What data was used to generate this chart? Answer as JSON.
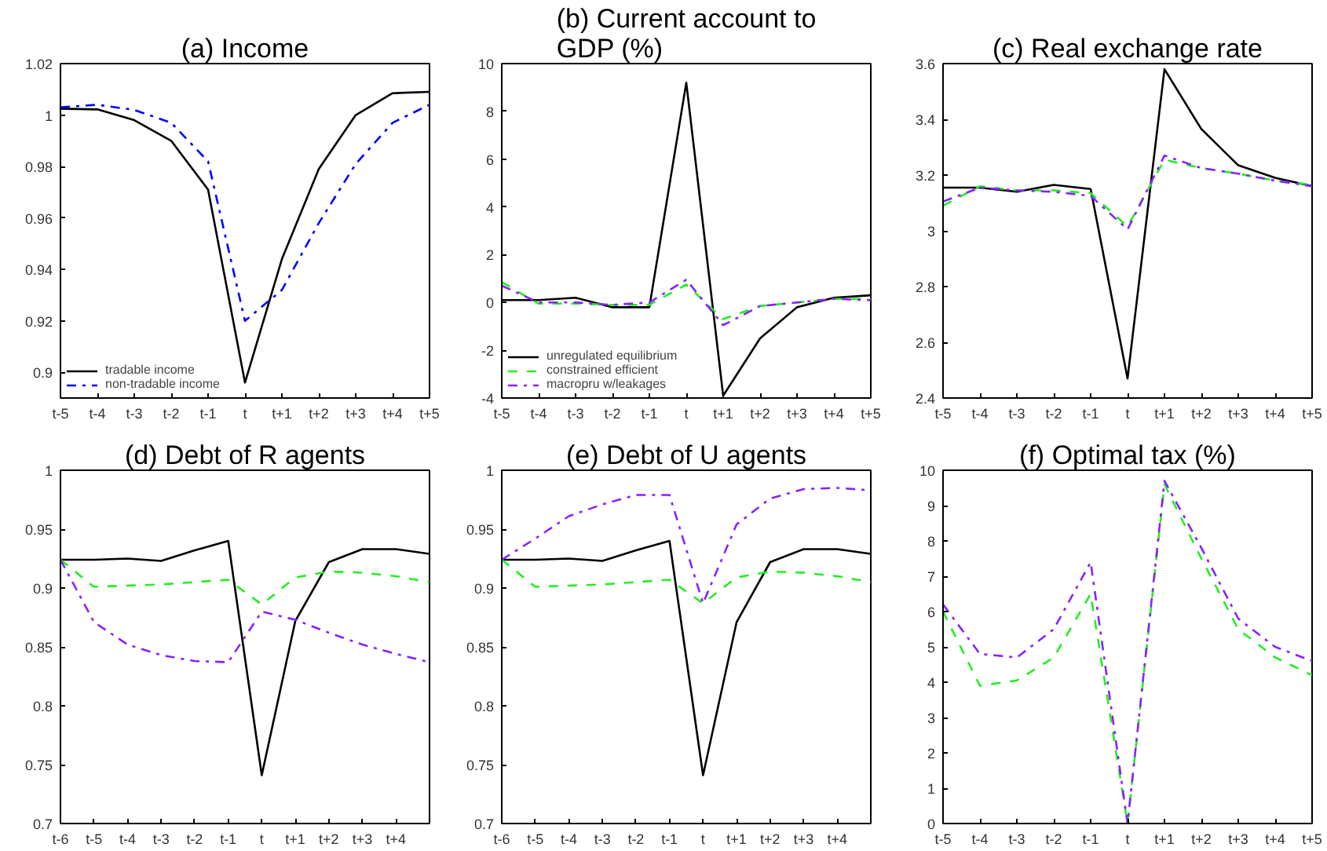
{
  "chart_data": [
    {
      "type": "line",
      "title": "(a) Income",
      "categories": [
        "t-5",
        "t-4",
        "t-3",
        "t-2",
        "t-1",
        "t",
        "t+1",
        "t+2",
        "t+3",
        "t+4",
        "t+5"
      ],
      "ylim": [
        0.89,
        1.02
      ],
      "yticks": [
        0.9,
        0.92,
        0.94,
        0.96,
        0.98,
        1,
        1.02
      ],
      "grid": false,
      "legend": "bottom left",
      "series": [
        {
          "name": "tradable income",
          "color": "#000000",
          "line_style": "solid",
          "values": [
            1.0025,
            1.0022,
            0.998,
            0.99,
            0.971,
            0.896,
            0.944,
            0.979,
            1.0,
            1.0085,
            1.009
          ]
        },
        {
          "name": "non-tradable income",
          "color": "#0000ff",
          "line_style": "dashdot",
          "values": [
            1.003,
            1.004,
            1.002,
            0.997,
            0.982,
            0.92,
            0.932,
            0.958,
            0.981,
            0.997,
            1.004
          ]
        }
      ]
    },
    {
      "type": "line",
      "title": "(b) Current account to GDP (%)",
      "categories": [
        "t-5",
        "t-4",
        "t-3",
        "t-2",
        "t-1",
        "t",
        "t+1",
        "t+2",
        "t+3",
        "t+4",
        "t+5"
      ],
      "ylim": [
        -4,
        10
      ],
      "yticks": [
        -4,
        -2,
        0,
        2,
        4,
        6,
        8,
        10
      ],
      "grid": false,
      "legend": "bottom left",
      "series": [
        {
          "name": "unregulated equilibrium",
          "color": "#000000",
          "line_style": "solid",
          "values": [
            0.1,
            0.1,
            0.2,
            -0.2,
            -0.2,
            9.2,
            -3.9,
            -1.5,
            -0.2,
            0.2,
            0.3
          ]
        },
        {
          "name": "constrained efficient",
          "color": "#22ee22",
          "line_style": "dashed",
          "values": [
            0.85,
            -0.05,
            -0.05,
            -0.1,
            -0.1,
            0.75,
            -0.7,
            -0.15,
            0.0,
            0.15,
            0.15
          ]
        },
        {
          "name": "macropru w/leakages",
          "color": "#8822ff",
          "line_style": "dashdot",
          "values": [
            0.7,
            0.0,
            0.0,
            -0.1,
            0.0,
            0.95,
            -0.95,
            -0.15,
            0.0,
            0.15,
            0.1
          ]
        }
      ]
    },
    {
      "type": "line",
      "title": "(c) Real exchange rate",
      "categories": [
        "t-5",
        "t-4",
        "t-3",
        "t-2",
        "t-1",
        "t",
        "t+1",
        "t+2",
        "t+3",
        "t+4",
        "t+5"
      ],
      "ylim": [
        2.4,
        3.6
      ],
      "yticks": [
        2.4,
        2.6,
        2.8,
        3,
        3.2,
        3.4,
        3.6
      ],
      "grid": false,
      "series": [
        {
          "color": "#000000",
          "line_style": "solid",
          "values": [
            3.155,
            3.155,
            3.14,
            3.165,
            3.15,
            2.47,
            3.58,
            3.365,
            3.235,
            3.19,
            3.16
          ]
        },
        {
          "color": "#22ee22",
          "line_style": "dashed",
          "values": [
            3.09,
            3.16,
            3.145,
            3.145,
            3.135,
            3.015,
            3.255,
            3.225,
            3.205,
            3.18,
            3.165
          ]
        },
        {
          "color": "#8822ff",
          "line_style": "dashdot",
          "values": [
            3.105,
            3.155,
            3.145,
            3.14,
            3.125,
            3.005,
            3.27,
            3.225,
            3.205,
            3.18,
            3.16
          ]
        }
      ]
    },
    {
      "type": "line",
      "title": "(d) Debt of R agents",
      "categories": [
        "t-6",
        "t-5",
        "t-4",
        "t-3",
        "t-2",
        "t-1",
        "t",
        "t+1",
        "t+2",
        "t+3",
        "t+4",
        null
      ],
      "ylim": [
        0.7,
        1
      ],
      "yticks": [
        0.7,
        0.75,
        0.8,
        0.85,
        0.9,
        0.95,
        1
      ],
      "grid": false,
      "series": [
        {
          "color": "#000000",
          "line_style": "solid",
          "values": [
            0.924,
            0.924,
            0.925,
            0.923,
            0.932,
            0.94,
            0.741,
            0.872,
            0.922,
            0.933,
            0.933,
            0.929
          ]
        },
        {
          "color": "#22ee22",
          "line_style": "dashed",
          "values": [
            0.924,
            0.901,
            0.902,
            0.903,
            0.905,
            0.907,
            0.886,
            0.909,
            0.914,
            0.913,
            0.91,
            0.905
          ]
        },
        {
          "color": "#8822ff",
          "line_style": "dashdot",
          "values": [
            0.924,
            0.871,
            0.852,
            0.843,
            0.838,
            0.837,
            0.88,
            0.873,
            0.862,
            0.852,
            0.844,
            0.837
          ]
        }
      ]
    },
    {
      "type": "line",
      "title": "(e) Debt of U agents",
      "categories": [
        "t-6",
        "t-5",
        "t-4",
        "t-3",
        "t-2",
        "t-1",
        "t",
        "t+1",
        "t+2",
        "t+3",
        "t+4",
        null
      ],
      "ylim": [
        0.7,
        1
      ],
      "yticks": [
        0.7,
        0.75,
        0.8,
        0.85,
        0.9,
        0.95,
        1
      ],
      "grid": false,
      "series": [
        {
          "color": "#000000",
          "line_style": "solid",
          "values": [
            0.924,
            0.924,
            0.925,
            0.923,
            0.932,
            0.94,
            0.741,
            0.871,
            0.922,
            0.933,
            0.933,
            0.929
          ]
        },
        {
          "color": "#22ee22",
          "line_style": "dashed",
          "values": [
            0.924,
            0.901,
            0.902,
            0.903,
            0.905,
            0.907,
            0.887,
            0.909,
            0.914,
            0.913,
            0.91,
            0.905
          ]
        },
        {
          "color": "#8822ff",
          "line_style": "dashdot",
          "values": [
            0.924,
            0.942,
            0.961,
            0.971,
            0.979,
            0.979,
            0.887,
            0.954,
            0.976,
            0.984,
            0.985,
            0.983
          ]
        }
      ]
    },
    {
      "type": "line",
      "title": "(f) Optimal tax (%)",
      "categories": [
        "t-5",
        "t-4",
        "t-3",
        "t-2",
        "t-1",
        "t",
        "t+1",
        "t+2",
        "t+3",
        "t+4",
        "t+5"
      ],
      "ylim": [
        0,
        10
      ],
      "yticks": [
        0,
        1,
        2,
        3,
        4,
        5,
        6,
        7,
        8,
        9,
        10
      ],
      "grid": false,
      "series": [
        {
          "color": "#22ee22",
          "line_style": "dashed",
          "values": [
            6.0,
            3.9,
            4.05,
            4.7,
            6.5,
            0.0,
            9.6,
            7.5,
            5.5,
            4.7,
            4.2
          ]
        },
        {
          "color": "#8822ff",
          "line_style": "dashdot",
          "values": [
            6.2,
            4.8,
            4.7,
            5.5,
            7.4,
            0.0,
            9.7,
            7.8,
            5.8,
            5.0,
            4.6
          ]
        }
      ]
    }
  ]
}
